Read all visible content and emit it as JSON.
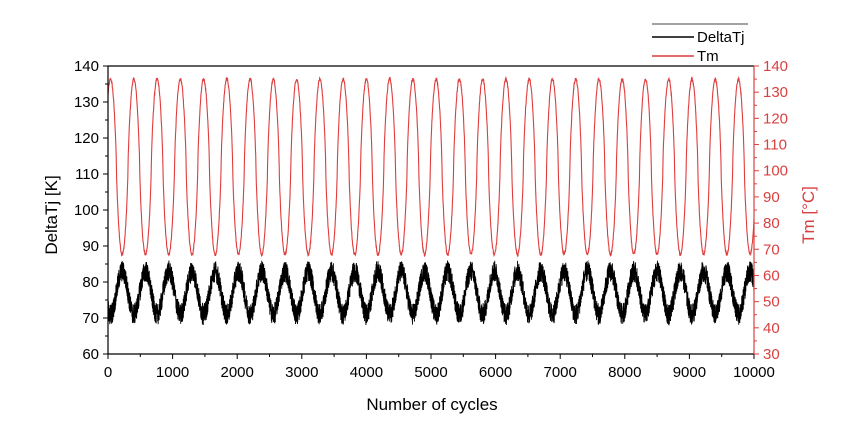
{
  "chart_data": {
    "type": "line",
    "title": "",
    "xlabel": "Number of cycles",
    "ylabel_left": "DeltaTj [K]",
    "ylabel_right": "Tm [°C]",
    "xlim": [
      0,
      10000
    ],
    "ylim_left": [
      60,
      140
    ],
    "ylim_right": [
      30,
      140
    ],
    "x_ticks": [
      "0",
      "1000",
      "2000",
      "3000",
      "4000",
      "5000",
      "6000",
      "7000",
      "8000",
      "9000",
      "10000"
    ],
    "y_left_ticks": [
      "60",
      "70",
      "80",
      "90",
      "100",
      "110",
      "120",
      "130",
      "140"
    ],
    "y_right_ticks": [
      "30",
      "40",
      "50",
      "60",
      "70",
      "80",
      "90",
      "100",
      "110",
      "120",
      "130",
      "140"
    ],
    "grid": false,
    "legend_position": "top-right",
    "colors": {
      "DeltaTj": "#000000",
      "Tm": "#e03c3c",
      "right_axis": "#d94040",
      "axis": "#000000"
    },
    "series": [
      {
        "name": "DeltaTj",
        "axis": "left",
        "period_cycles": 360,
        "mean": 77,
        "amplitude": 6,
        "noise_band": 6,
        "x_range": [
          0,
          10000
        ],
        "peaks_approx": 84,
        "troughs_approx": 70
      },
      {
        "name": "Tm",
        "axis": "right",
        "period_cycles": 360,
        "mean": 101.5,
        "amplitude": 33.5,
        "x_range": [
          0,
          10000
        ],
        "peak": 135,
        "trough": 68
      }
    ]
  }
}
